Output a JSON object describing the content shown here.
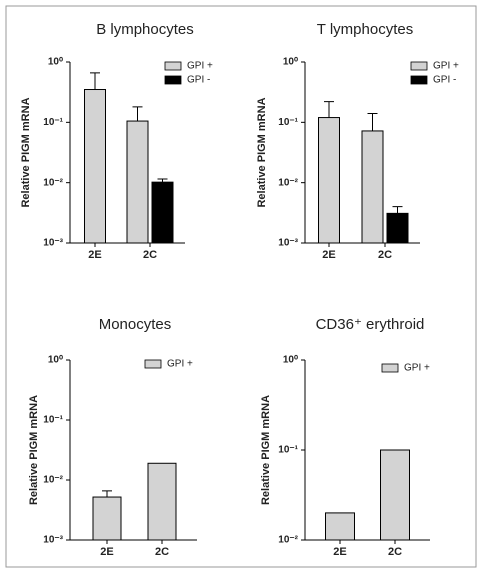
{
  "chart_data": [
    {
      "type": "bar",
      "title": "B lymphocytes",
      "y_label": "Relative PIGM mRNA",
      "log_scale": true,
      "categories": [
        "2E",
        "2C"
      ],
      "series": [
        {
          "name": "GPI +",
          "color": "#d3d3d3",
          "values": [
            0.35,
            0.105
          ],
          "errors": [
            0.31,
            0.075
          ]
        },
        {
          "name": "GPI -",
          "color": "#000000",
          "values": [
            null,
            0.0102
          ],
          "errors": [
            null,
            0.0013
          ]
        }
      ],
      "ylim": [
        0.001,
        1
      ],
      "yticks": [
        {
          "value": 0.001,
          "label": "10⁻³"
        },
        {
          "value": 0.01,
          "label": "10⁻²"
        },
        {
          "value": 0.1,
          "label": "10⁻¹"
        },
        {
          "value": 1,
          "label": "10⁰"
        }
      ]
    },
    {
      "type": "bar",
      "title": "T lymphocytes",
      "y_label": "Relative PIGM mRNA",
      "log_scale": true,
      "categories": [
        "2E",
        "2C"
      ],
      "series": [
        {
          "name": "GPI +",
          "color": "#d3d3d3",
          "values": [
            0.12,
            0.072
          ],
          "errors": [
            0.1,
            0.068
          ]
        },
        {
          "name": "GPI -",
          "color": "#000000",
          "values": [
            null,
            0.0031
          ],
          "errors": [
            null,
            0.0009
          ]
        }
      ],
      "ylim": [
        0.001,
        1
      ],
      "yticks": [
        {
          "value": 0.001,
          "label": "10⁻³"
        },
        {
          "value": 0.01,
          "label": "10⁻²"
        },
        {
          "value": 0.1,
          "label": "10⁻¹"
        },
        {
          "value": 1,
          "label": "10⁰"
        }
      ]
    },
    {
      "type": "bar",
      "title": "Monocytes",
      "y_label": "Relative PIGM mRNA",
      "log_scale": true,
      "categories": [
        "2E",
        "2C"
      ],
      "series": [
        {
          "name": "GPI +",
          "color": "#d3d3d3",
          "values": [
            0.0052,
            0.019
          ],
          "errors": [
            0.0014,
            null
          ]
        }
      ],
      "ylim": [
        0.001,
        1
      ],
      "yticks": [
        {
          "value": 0.001,
          "label": "10⁻³"
        },
        {
          "value": 0.01,
          "label": "10⁻²"
        },
        {
          "value": 0.1,
          "label": "10⁻¹"
        },
        {
          "value": 1,
          "label": "10⁰"
        }
      ]
    },
    {
      "type": "bar",
      "title": "CD36⁺ erythroid",
      "y_label": "Relative PIGM mRNA",
      "log_scale": true,
      "categories": [
        "2E",
        "2C"
      ],
      "series": [
        {
          "name": "GPI +",
          "color": "#d3d3d3",
          "values": [
            0.02,
            0.1
          ],
          "errors": [
            null,
            null
          ]
        }
      ],
      "ylim": [
        0.01,
        1
      ],
      "yticks": [
        {
          "value": 0.01,
          "label": "10⁻²"
        },
        {
          "value": 0.1,
          "label": "10⁻¹"
        },
        {
          "value": 1,
          "label": "10⁰"
        }
      ]
    }
  ]
}
